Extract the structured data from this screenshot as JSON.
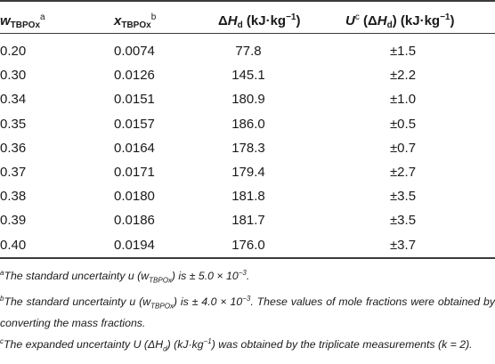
{
  "table": {
    "headers": {
      "w": {
        "symbol": "w",
        "sub": "TBPOx",
        "note": "a"
      },
      "x": {
        "symbol": "x",
        "sub": "TBPOx",
        "note": "b"
      },
      "dh": {
        "delta": "Δ",
        "symbol": "H",
        "sub": "d",
        "unit": " (kJ·kg",
        "unit_exp": "−1",
        "unit_close": ")"
      },
      "u": {
        "symbol": "U",
        "note": "c",
        "paren_open": " (Δ",
        "symbol2": "H",
        "sub": "d",
        "paren_close": ") (kJ·kg",
        "unit_exp": "−1",
        "unit_close": ")"
      }
    },
    "rows": [
      {
        "w": "0.20",
        "x": "0.0074",
        "dh": "77.8",
        "u": "±1.5"
      },
      {
        "w": "0.30",
        "x": "0.0126",
        "dh": "145.1",
        "u": "±2.2"
      },
      {
        "w": "0.34",
        "x": "0.0151",
        "dh": "180.9",
        "u": "±1.0"
      },
      {
        "w": "0.35",
        "x": "0.0157",
        "dh": "186.0",
        "u": "±0.5"
      },
      {
        "w": "0.36",
        "x": "0.0164",
        "dh": "178.3",
        "u": "±0.7"
      },
      {
        "w": "0.37",
        "x": "0.0171",
        "dh": "179.4",
        "u": "±2.7"
      },
      {
        "w": "0.38",
        "x": "0.0180",
        "dh": "181.8",
        "u": "±3.5"
      },
      {
        "w": "0.39",
        "x": "0.0186",
        "dh": "181.7",
        "u": "±3.5"
      },
      {
        "w": "0.40",
        "x": "0.0194",
        "dh": "176.0",
        "u": "±3.7"
      }
    ]
  },
  "footnotes": [
    {
      "mark": "a",
      "text": "The standard uncertainty u (w",
      "sub": "TBPOx",
      "text2": ") is ± 5.0 × 10",
      "exp": "−3",
      "text3": "."
    },
    {
      "mark": "b",
      "text": "The standard uncertainty u (w",
      "sub": "TBPOx",
      "text2": ") is ± 4.0 × 10",
      "exp": "−3",
      "text3": ". These values of mole fractions were obtained by converting the mass fractions."
    },
    {
      "mark": "c",
      "text": "The expanded uncertainty U (ΔH",
      "sub": "d",
      "text2": ") (kJ·kg",
      "exp": "−1",
      "text3": ") was obtained by the triplicate measurements (k = 2)."
    }
  ]
}
